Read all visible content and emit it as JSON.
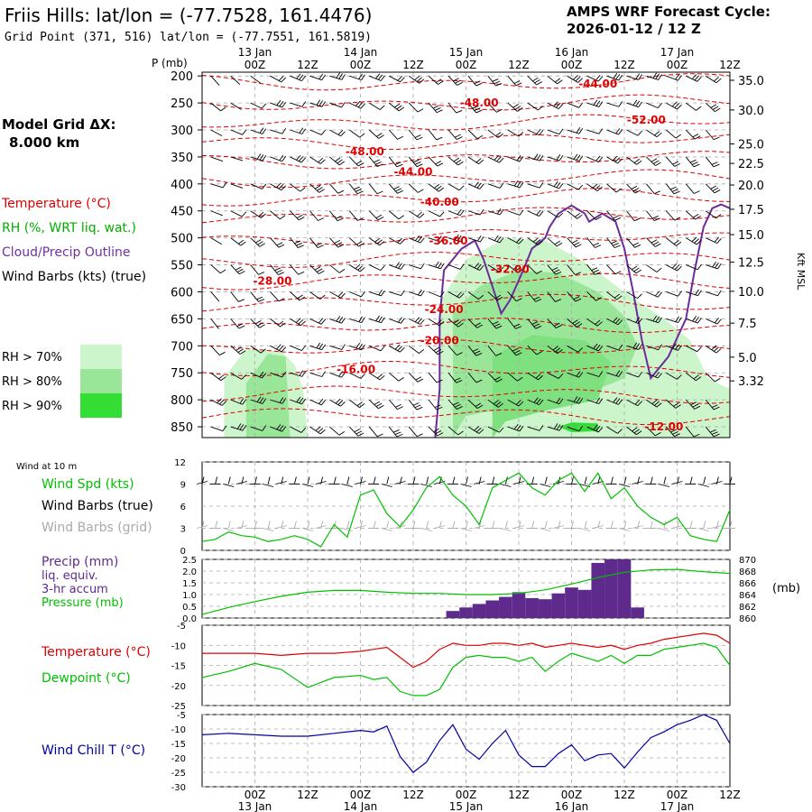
{
  "header": {
    "title": "Friis Hills:  lat/lon = (-77.7528, 161.4476)",
    "grid_point": "Grid Point (371, 516) lat/lon = (-77.7551, 161.5819)",
    "cycle_label": "AMPS WRF Forecast Cycle:",
    "cycle_value": "2026-01-12 / 12  Z"
  },
  "left_panel": {
    "model_grid_label": "Model Grid ΔX:",
    "model_grid_value": "8.000 km",
    "legend": [
      {
        "text": "Temperature (°C)",
        "color": "#e00000"
      },
      {
        "text": "RH (%, WRT liq. wat.)",
        "color": "#00b000"
      },
      {
        "text": "Cloud/Precip Outline",
        "color": "#7030a0"
      },
      {
        "text": "Wind Barbs (kts) (true)",
        "color": "#000000"
      }
    ],
    "rh_legend": [
      {
        "text": "RH > 70%",
        "color": "#ccf5cc"
      },
      {
        "text": "RH > 80%",
        "color": "#99e699"
      },
      {
        "text": "RH > 90%",
        "color": "#33dd33"
      }
    ]
  },
  "time_axis": {
    "hour_labels": [
      "00Z",
      "12Z",
      "00Z",
      "12Z",
      "00Z",
      "12Z",
      "00Z",
      "12Z",
      "00Z",
      "12Z"
    ],
    "date_labels": [
      "13 Jan",
      "14 Jan",
      "15 Jan",
      "16 Jan",
      "17 Jan"
    ]
  },
  "colors": {
    "temperature": "#e00000",
    "rh_green": "#00c000",
    "cloud_outline": "#6a2c9a",
    "dewpoint": "#00c000",
    "precip": "#5e2a8c",
    "windchill": "#0000a0",
    "gridline": "#a8a8a8"
  },
  "chart_data": [
    {
      "type": "heatmap",
      "name": "Time-height cross section",
      "yaxis_title": "P (mb)",
      "right_axis_title": "Kft MSL",
      "pressure_levels": [
        200,
        250,
        300,
        350,
        400,
        450,
        500,
        550,
        600,
        650,
        700,
        750,
        800,
        850
      ],
      "pressure_tick_labels": [
        "200",
        "250",
        "300",
        "350",
        "400",
        "450",
        "500",
        "550",
        "600",
        "650",
        "700",
        "750",
        "800",
        "850"
      ],
      "kft_ticks": [
        {
          "label": "35.0",
          "p": 208
        },
        {
          "label": "30.0",
          "p": 263
        },
        {
          "label": "25.0",
          "p": 326
        },
        {
          "label": "22.5",
          "p": 362
        },
        {
          "label": "20.0",
          "p": 402
        },
        {
          "label": "17.5",
          "p": 447
        },
        {
          "label": "15.0",
          "p": 494
        },
        {
          "label": "12.5",
          "p": 545
        },
        {
          "label": "10.0",
          "p": 599
        },
        {
          "label": "7.5",
          "p": 658
        },
        {
          "label": "5.0",
          "p": 721
        },
        {
          "label": "3.32",
          "p": 765
        }
      ],
      "ylim": [
        193,
        870
      ],
      "xlim_hours": [
        -12,
        108
      ],
      "temperature_labels": [
        {
          "text": "-44.00",
          "t": 78,
          "p": 215
        },
        {
          "text": "-48.00",
          "t": 51,
          "p": 250
        },
        {
          "text": "-52.00",
          "t": 89,
          "p": 282
        },
        {
          "text": "-48.00",
          "t": 25,
          "p": 340
        },
        {
          "text": "-44.00",
          "t": 36,
          "p": 378
        },
        {
          "text": "-40.00",
          "t": 42,
          "p": 434
        },
        {
          "text": "-36.00",
          "t": 44,
          "p": 506
        },
        {
          "text": "-32.00",
          "t": 58,
          "p": 558
        },
        {
          "text": "-28.00",
          "t": 4,
          "p": 580
        },
        {
          "text": "-24.00",
          "t": 43,
          "p": 633
        },
        {
          "text": "-20.00",
          "t": 42,
          "p": 690
        },
        {
          "text": "-16.00",
          "t": 23,
          "p": 744
        },
        {
          "text": "-12.00",
          "t": 93,
          "p": 850
        }
      ],
      "x_axis_labels": [],
      "y_axis_labels": []
    },
    {
      "type": "line",
      "name": "Wind at 10 m",
      "label": "Wind at 10 m",
      "legend": [
        "Wind Spd (kts)",
        "Wind Barbs (true)",
        "Wind Barbs (grid)"
      ],
      "ylim": [
        0,
        12
      ],
      "yticks": [
        "0",
        "3",
        "6",
        "9",
        "12"
      ],
      "x_hours": [
        -12,
        -9,
        -6,
        -3,
        0,
        3,
        6,
        9,
        12,
        15,
        18,
        21,
        24,
        27,
        30,
        33,
        36,
        39,
        42,
        45,
        48,
        51,
        54,
        57,
        60,
        63,
        66,
        69,
        72,
        75,
        78,
        81,
        84,
        87,
        90,
        93,
        96,
        99,
        102,
        105,
        108
      ],
      "wind_speed": [
        1.2,
        1.5,
        2.5,
        2.0,
        1.8,
        1.2,
        1.5,
        2.0,
        1.5,
        0.5,
        3.5,
        1.8,
        7.5,
        8.2,
        5.0,
        3.2,
        5.5,
        8.5,
        10.0,
        7.5,
        6.0,
        3.5,
        8.5,
        9.5,
        10.5,
        8.5,
        7.5,
        9.5,
        10.5,
        8.0,
        10.5,
        7.0,
        8.5,
        6.0,
        4.5,
        3.5,
        4.5,
        2.0,
        1.5,
        1.2,
        5.5
      ]
    },
    {
      "type": "bar",
      "name": "Precip and Pressure",
      "legend": [
        "Precip (mm)",
        "liq. equiv.",
        "3-hr accum",
        "Pressure (mb)"
      ],
      "precip_ylim": [
        0,
        2.5
      ],
      "precip_yticks": [
        "0.0",
        "0.5",
        "1.0",
        "1.5",
        "2.0",
        "2.5"
      ],
      "pressure_ylim": [
        860,
        870
      ],
      "pressure_yticks": [
        "860",
        "862",
        "864",
        "866",
        "868",
        "870"
      ],
      "pressure_unit": "(mb)",
      "precip_bars": [
        {
          "hour": 45,
          "value": 0.3
        },
        {
          "hour": 48,
          "value": 0.45
        },
        {
          "hour": 51,
          "value": 0.6
        },
        {
          "hour": 54,
          "value": 0.75
        },
        {
          "hour": 57,
          "value": 0.9
        },
        {
          "hour": 60,
          "value": 1.1
        },
        {
          "hour": 63,
          "value": 0.85
        },
        {
          "hour": 66,
          "value": 0.8
        },
        {
          "hour": 69,
          "value": 1.05
        },
        {
          "hour": 72,
          "value": 1.3
        },
        {
          "hour": 75,
          "value": 1.2
        },
        {
          "hour": 78,
          "value": 2.35
        },
        {
          "hour": 81,
          "value": 2.5
        },
        {
          "hour": 84,
          "value": 2.5
        },
        {
          "hour": 87,
          "value": 0.45
        }
      ],
      "pressure_hours": [
        -12,
        -6,
        0,
        6,
        12,
        18,
        24,
        30,
        36,
        42,
        48,
        54,
        60,
        66,
        72,
        78,
        84,
        90,
        96,
        102,
        108
      ],
      "pressure_values": [
        860.6,
        861.8,
        862.8,
        863.7,
        864.4,
        864.7,
        864.7,
        864.4,
        864.2,
        864.2,
        864.0,
        864.0,
        864.2,
        864.8,
        865.8,
        866.9,
        867.8,
        868.2,
        868.3,
        867.9,
        867.6
      ]
    },
    {
      "type": "line",
      "name": "Temperature and Dewpoint",
      "legend": [
        "Temperature (°C)",
        "Dewpoint (°C)"
      ],
      "ylim": [
        -25,
        -5
      ],
      "yticks": [
        "-5",
        "-10",
        "-15",
        "-20",
        "-25"
      ],
      "x_hours": [
        -12,
        -6,
        0,
        6,
        12,
        18,
        24,
        27,
        30,
        33,
        36,
        39,
        42,
        45,
        48,
        51,
        54,
        57,
        60,
        63,
        66,
        69,
        72,
        75,
        78,
        81,
        84,
        87,
        90,
        93,
        96,
        99,
        102,
        105,
        108
      ],
      "temperature": [
        -12.0,
        -12.0,
        -12.0,
        -12.5,
        -12.0,
        -12.0,
        -11.5,
        -11.0,
        -10.5,
        -13.0,
        -15.5,
        -14.0,
        -11.0,
        -9.5,
        -10.0,
        -10.0,
        -9.5,
        -9.5,
        -10.0,
        -9.5,
        -10.5,
        -10.0,
        -9.5,
        -10.0,
        -10.5,
        -10.0,
        -11.0,
        -10.0,
        -9.5,
        -8.5,
        -8.0,
        -7.5,
        -7.0,
        -7.5,
        -9.5
      ],
      "dewpoint": [
        -18.0,
        -16.5,
        -14.5,
        -16.0,
        -20.5,
        -18.0,
        -17.5,
        -18.5,
        -18.0,
        -21.5,
        -22.5,
        -22.5,
        -21.0,
        -15.5,
        -13.0,
        -12.5,
        -13.0,
        -13.0,
        -14.0,
        -13.0,
        -16.5,
        -14.0,
        -12.0,
        -13.0,
        -14.0,
        -12.5,
        -14.5,
        -12.5,
        -12.5,
        -11.0,
        -10.5,
        -10.0,
        -9.5,
        -10.5,
        -15.0
      ]
    },
    {
      "type": "line",
      "name": "Wind Chill",
      "legend": [
        "Wind Chill T (°C)"
      ],
      "ylim": [
        -30,
        -5
      ],
      "yticks": [
        "-5",
        "-10",
        "-15",
        "-20",
        "-25",
        "-30"
      ],
      "x_hours": [
        -12,
        -6,
        0,
        6,
        12,
        18,
        24,
        27,
        30,
        33,
        36,
        39,
        42,
        45,
        48,
        51,
        54,
        57,
        60,
        63,
        66,
        69,
        72,
        75,
        78,
        81,
        84,
        87,
        90,
        93,
        96,
        99,
        102,
        105,
        108
      ],
      "windchill": [
        -12.0,
        -11.5,
        -12.0,
        -12.5,
        -12.5,
        -11.5,
        -10.5,
        -11.0,
        -9.0,
        -19.5,
        -25.0,
        -21.5,
        -14.0,
        -8.5,
        -17.0,
        -20.5,
        -15.0,
        -10.5,
        -19.0,
        -23.0,
        -23.0,
        -18.5,
        -15.5,
        -21.0,
        -19.0,
        -18.5,
        -23.5,
        -18.0,
        -13.0,
        -11.0,
        -8.5,
        -7.0,
        -5.0,
        -7.0,
        -15.0
      ]
    }
  ]
}
